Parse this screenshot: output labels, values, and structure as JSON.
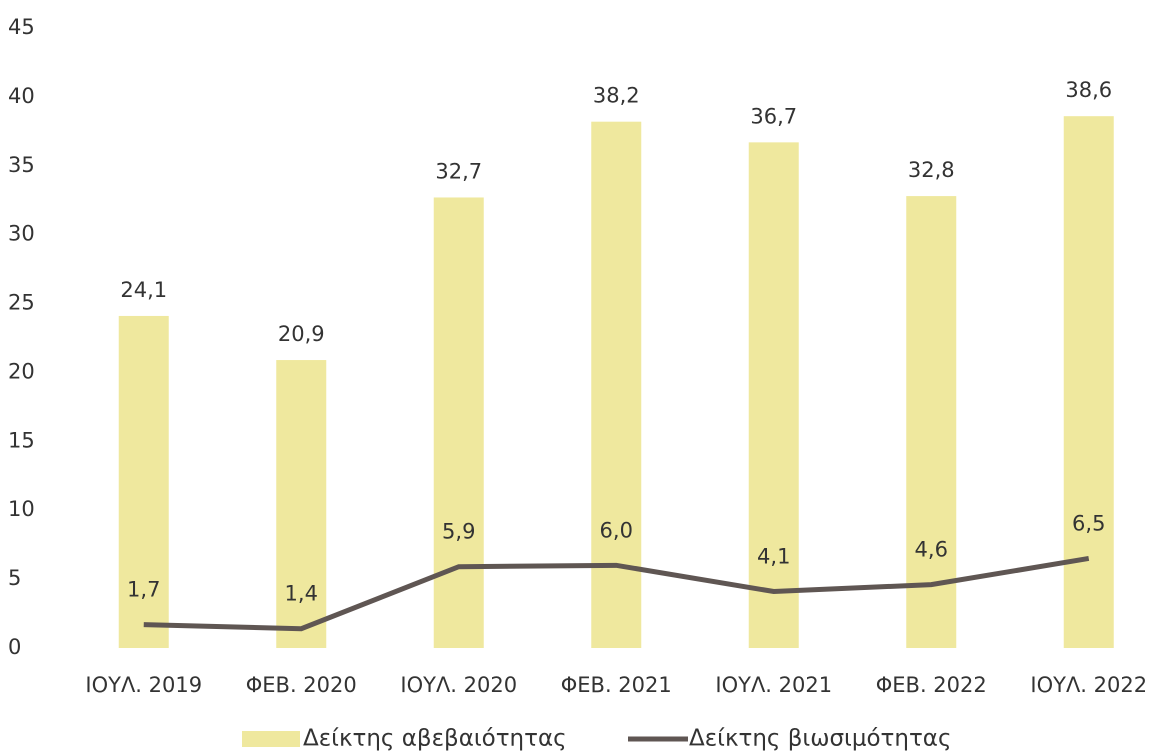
{
  "chart_data": {
    "type": "bar",
    "categories": [
      "ΙΟΥΛ. 2019",
      "ΦΕΒ. 2020",
      "ΙΟΥΛ. 2020",
      "ΦΕΒ. 2021",
      "ΙΟΥΛ. 2021",
      "ΦΕΒ. 2022",
      "ΙΟΥΛ. 2022"
    ],
    "series": [
      {
        "name": "Δείκτης αβεβαιότητας",
        "type": "bar",
        "color": "#efe89e",
        "values": [
          24.1,
          20.9,
          32.7,
          38.2,
          36.7,
          32.8,
          38.6
        ],
        "value_labels": [
          "24,1",
          "20,9",
          "32,7",
          "38,2",
          "36,7",
          "32,8",
          "38,6"
        ]
      },
      {
        "name": "Δείκτης βιωσιμότητας",
        "type": "line",
        "color": "#5f5653",
        "values": [
          1.7,
          1.4,
          5.9,
          6.0,
          4.1,
          4.6,
          6.5
        ],
        "value_labels": [
          "1,7",
          "1,4",
          "5,9",
          "6,0",
          "4,1",
          "4,6",
          "6,5"
        ]
      }
    ],
    "ylim": [
      0,
      45
    ],
    "yticks": [
      0,
      5,
      10,
      15,
      20,
      25,
      30,
      35,
      40,
      45
    ],
    "grid": false,
    "legend": "bottom"
  }
}
